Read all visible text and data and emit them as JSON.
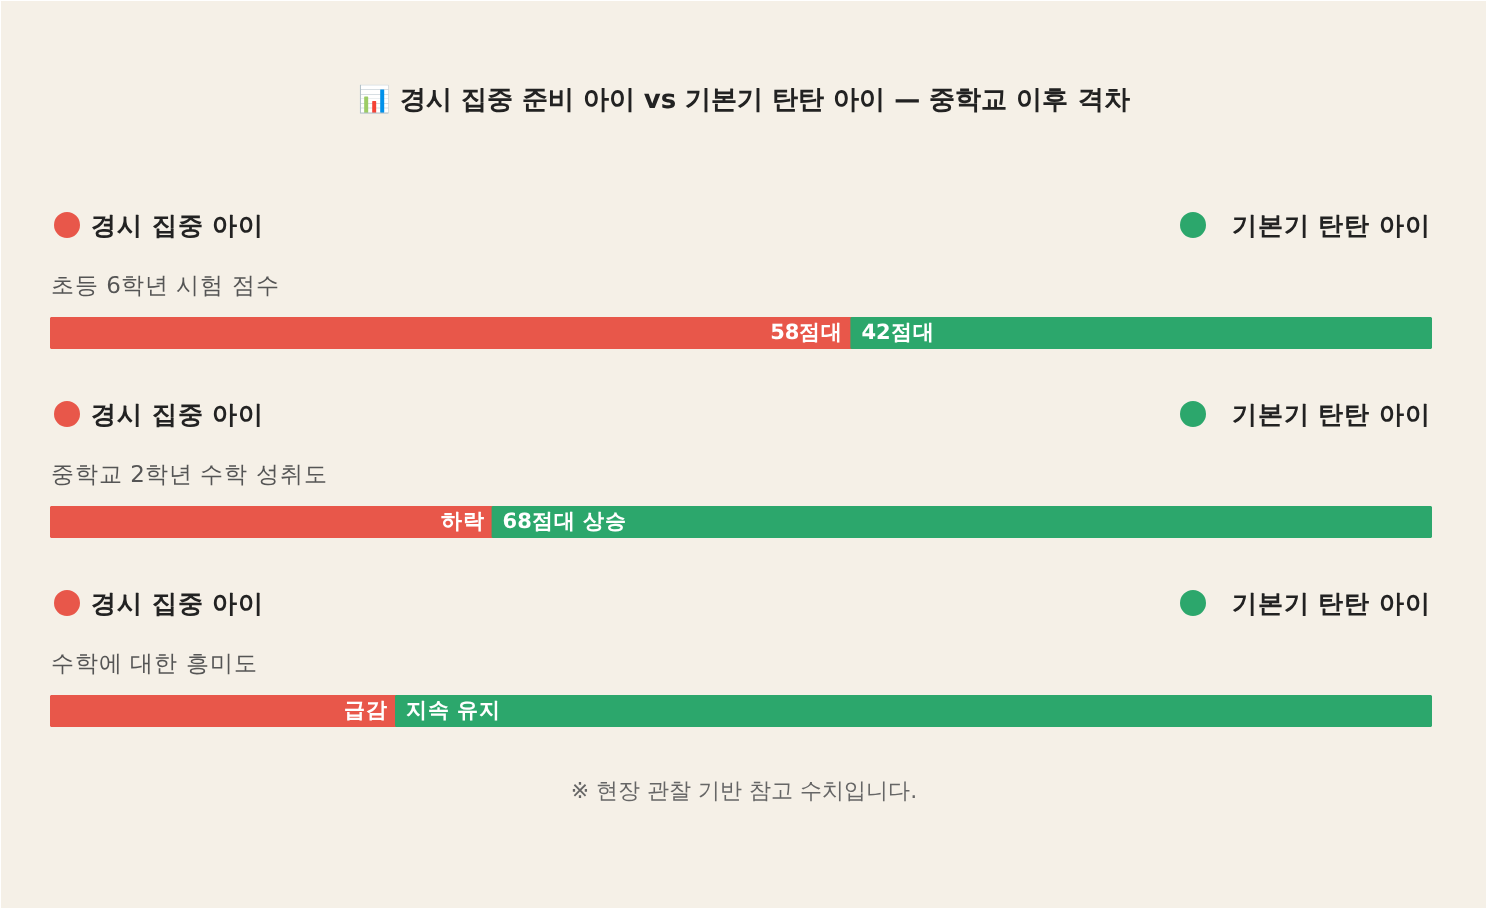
{
  "chart_data": {
    "type": "bar",
    "orientation": "horizontal",
    "stacked": true,
    "xlim": [
      0,
      100
    ],
    "tick_labels": false,
    "title": "📊 경시 집중 준비 아이 vs 기본기 탄탄 아이 — 중학교 이후 격차",
    "categories": [
      "초등 6학년 시험 점수",
      "중학교 2학년 수학 성취도",
      "수학에 대한 흥미도"
    ],
    "series": [
      {
        "name": "경시 집중 아이",
        "color": "#e8574a",
        "values": [
          58,
          32,
          25
        ],
        "value_labels": [
          "58점대",
          "하락",
          "급감"
        ]
      },
      {
        "name": "기본기 탄탄 아이",
        "color": "#2ca76c",
        "values": [
          42,
          68,
          75
        ],
        "value_labels": [
          "42점대",
          "68점대 상승",
          "지속 유지"
        ]
      }
    ],
    "legend": "top",
    "grid": false,
    "annotations": [
      "※ 현장 관찰 기반 참고 수치입니다."
    ]
  }
}
